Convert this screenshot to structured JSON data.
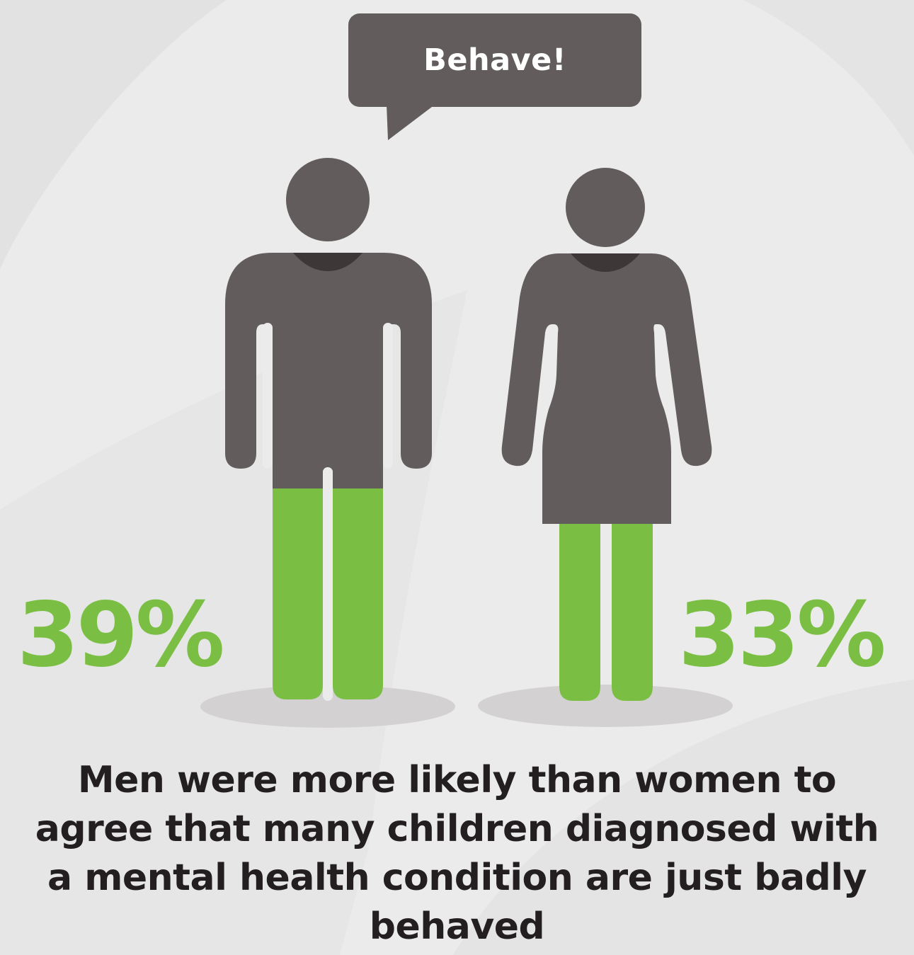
{
  "speech_bubble": {
    "text": "Behave!"
  },
  "men": {
    "percentage": "39%",
    "value": 39
  },
  "women": {
    "percentage": "33%",
    "value": 33
  },
  "caption": "Men were more likely than women to agree that many children diagnosed with a mental health condition are just badly behaved",
  "colors": {
    "background": "#ebebeb",
    "figure": "#625c5c",
    "accent_green": "#7abf44",
    "caption_text": "#231f20"
  }
}
